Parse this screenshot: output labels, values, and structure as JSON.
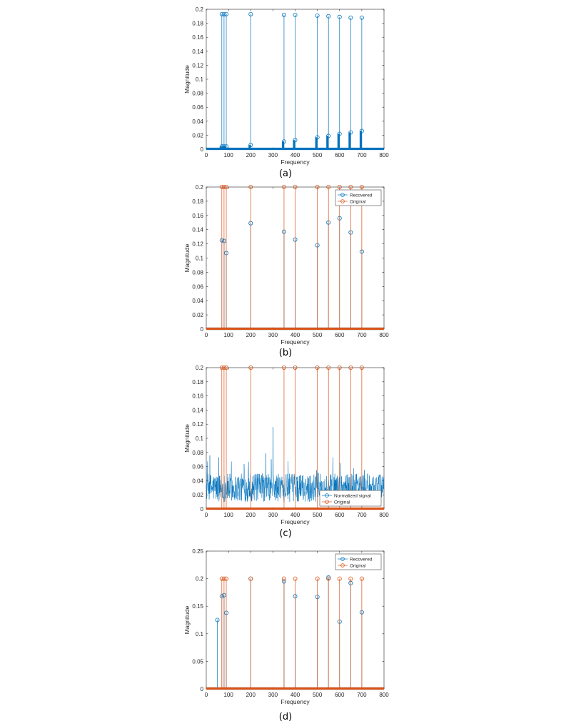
{
  "colors": {
    "recovered": "#0072BD",
    "original": "#D95319",
    "axis": "#262626"
  },
  "chart_data": [
    {
      "id": "a",
      "type": "stem",
      "caption": "(a)",
      "xlabel": "Frequency",
      "ylabel": "Magnitude",
      "xlim": [
        0,
        800
      ],
      "ylim": [
        0,
        0.2
      ],
      "xticks": [
        0,
        100,
        200,
        300,
        400,
        500,
        600,
        700,
        800
      ],
      "yticks": [
        0,
        0.02,
        0.04,
        0.06,
        0.08,
        0.1,
        0.12,
        0.14,
        0.16,
        0.18,
        0.2
      ],
      "legend": [],
      "series": [
        {
          "kind": "stem",
          "color": "recovered",
          "x": [
            70,
            80,
            90,
            200,
            350,
            400,
            500,
            550,
            600,
            650,
            700
          ],
          "y": [
            0.193,
            0.193,
            0.193,
            0.193,
            0.192,
            0.192,
            0.191,
            0.19,
            0.189,
            0.188,
            0.188
          ],
          "leakage": [
            0.004,
            0.004,
            0.004,
            0.006,
            0.011,
            0.013,
            0.017,
            0.019,
            0.022,
            0.024,
            0.026
          ]
        }
      ]
    },
    {
      "id": "b",
      "type": "stem",
      "caption": "(b)",
      "xlabel": "Frequency",
      "ylabel": "Magnitude",
      "xlim": [
        0,
        800
      ],
      "ylim": [
        0,
        0.2
      ],
      "xticks": [
        0,
        100,
        200,
        300,
        400,
        500,
        600,
        700,
        800
      ],
      "yticks": [
        0,
        0.02,
        0.04,
        0.06,
        0.08,
        0.1,
        0.12,
        0.14,
        0.16,
        0.18,
        0.2
      ],
      "legend": [
        "Recovered",
        "Original"
      ],
      "series": [
        {
          "name": "Recovered",
          "kind": "stem",
          "color": "recovered",
          "x": [
            70,
            80,
            90,
            200,
            350,
            400,
            500,
            550,
            600,
            650,
            700
          ],
          "y": [
            0.125,
            0.124,
            0.107,
            0.149,
            0.137,
            0.126,
            0.118,
            0.15,
            0.156,
            0.136,
            0.109
          ]
        },
        {
          "name": "Original",
          "kind": "stem",
          "color": "original",
          "x": [
            70,
            80,
            90,
            200,
            350,
            400,
            500,
            550,
            600,
            650,
            700
          ],
          "y": [
            0.2,
            0.2,
            0.2,
            0.2,
            0.2,
            0.2,
            0.2,
            0.2,
            0.2,
            0.2,
            0.2
          ]
        }
      ]
    },
    {
      "id": "c",
      "type": "stem",
      "caption": "(c)",
      "xlabel": "Frequency",
      "ylabel": "Magnitude",
      "xlim": [
        0,
        800
      ],
      "ylim": [
        0,
        0.2
      ],
      "xticks": [
        0,
        100,
        200,
        300,
        400,
        500,
        600,
        700,
        800
      ],
      "yticks": [
        0,
        0.02,
        0.04,
        0.06,
        0.08,
        0.1,
        0.12,
        0.14,
        0.16,
        0.18,
        0.2
      ],
      "legend": [
        "Normalized signal",
        "Original"
      ],
      "series": [
        {
          "name": "Normalized signal",
          "kind": "line",
          "color": "recovered",
          "noise": {
            "count": 800,
            "mean": 0.03,
            "spread": 0.02,
            "max": 0.116,
            "max_x": 300
          }
        },
        {
          "name": "Original",
          "kind": "stem",
          "color": "original",
          "x": [
            70,
            80,
            90,
            200,
            350,
            400,
            500,
            550,
            600,
            650,
            700
          ],
          "y": [
            0.2,
            0.2,
            0.2,
            0.2,
            0.2,
            0.2,
            0.2,
            0.2,
            0.2,
            0.2,
            0.2
          ]
        }
      ]
    },
    {
      "id": "d",
      "type": "stem",
      "caption": "(d)",
      "xlabel": "Frequency",
      "ylabel": "Magnitude",
      "xlim": [
        0,
        800
      ],
      "ylim": [
        0,
        0.25
      ],
      "xticks": [
        0,
        100,
        200,
        300,
        400,
        500,
        600,
        700,
        800
      ],
      "yticks": [
        0,
        0.05,
        0.1,
        0.15,
        0.2,
        0.25
      ],
      "legend": [
        "Recovered",
        "Original"
      ],
      "series": [
        {
          "name": "Recovered",
          "kind": "stem",
          "color": "recovered",
          "x": [
            50,
            70,
            80,
            90,
            200,
            350,
            400,
            500,
            550,
            600,
            650,
            700
          ],
          "y": [
            0.125,
            0.168,
            0.17,
            0.138,
            0.2,
            0.195,
            0.168,
            0.167,
            0.202,
            0.122,
            0.192,
            0.139
          ]
        },
        {
          "name": "Original",
          "kind": "stem",
          "color": "original",
          "x": [
            70,
            80,
            90,
            200,
            350,
            400,
            500,
            550,
            600,
            650,
            700
          ],
          "y": [
            0.2,
            0.2,
            0.2,
            0.2,
            0.2,
            0.2,
            0.2,
            0.2,
            0.2,
            0.2,
            0.2
          ]
        }
      ]
    }
  ]
}
